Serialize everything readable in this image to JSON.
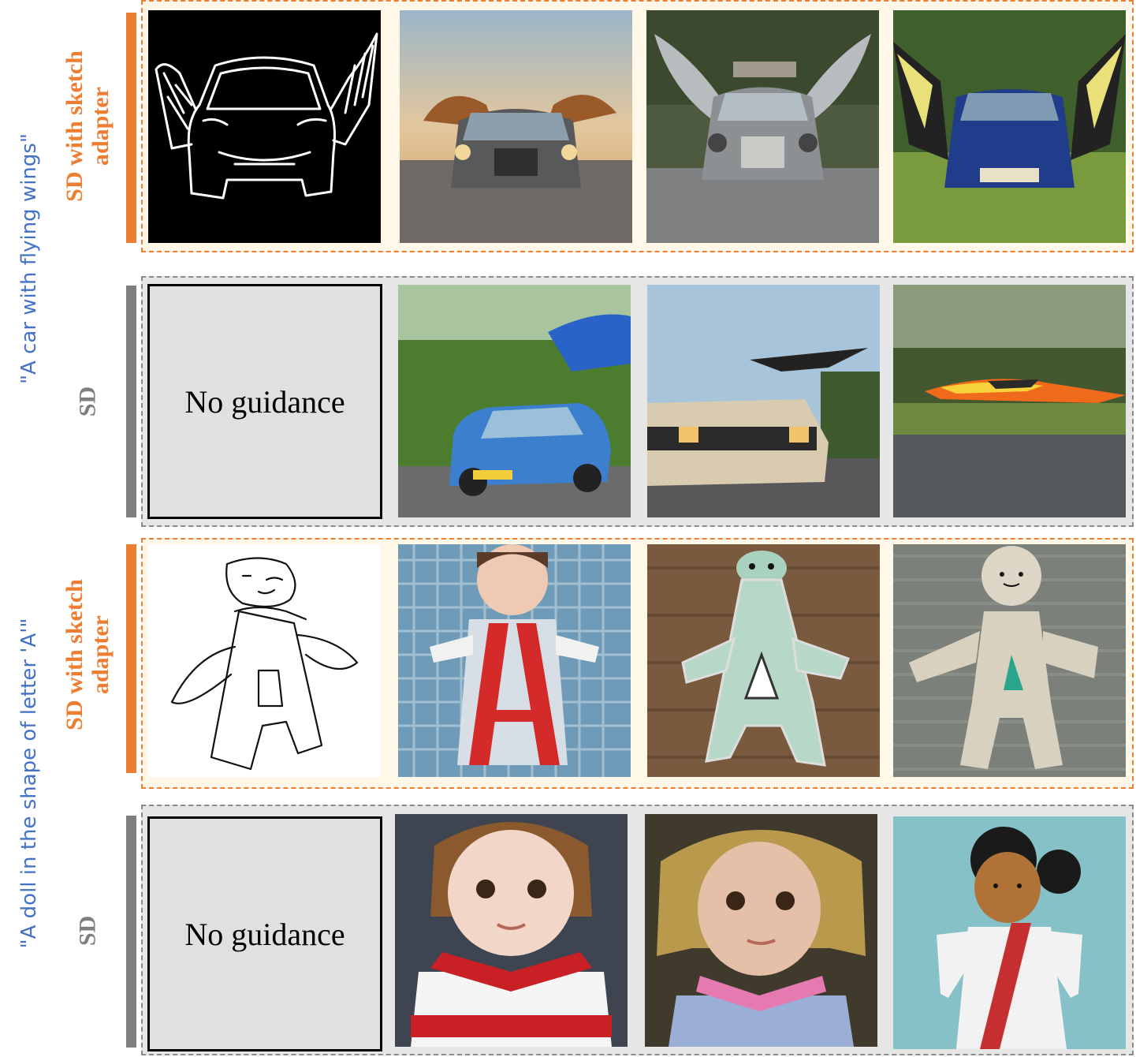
{
  "prompts": {
    "car": "\"A car with flying wings\"",
    "doll": "\"A doll in the shape of letter 'A'\""
  },
  "methods": {
    "sketch_line1": "SD with sketch",
    "sketch_line2": "adapter",
    "sd": "SD"
  },
  "no_guidance": "No guidance",
  "colors": {
    "orange": "#ed7d31",
    "blue": "#4472c4",
    "gray": "#7f7f7f"
  }
}
